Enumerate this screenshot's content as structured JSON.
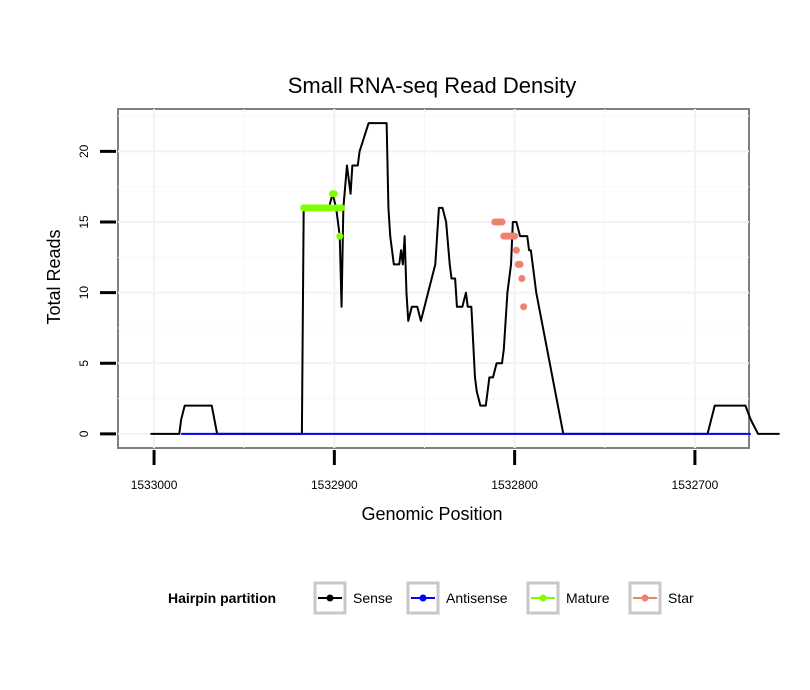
{
  "chart_data": {
    "type": "line",
    "title": "Small RNA-seq Read Density",
    "xlabel": "Genomic Position",
    "ylabel": "Total Reads",
    "x_reversed": true,
    "xlim": [
      1533020,
      1532670
    ],
    "ylim": [
      -1,
      23
    ],
    "x_ticks": [
      1533000,
      1532900,
      1532800,
      1532700
    ],
    "x_tick_labels": [
      "1533000",
      "1532900",
      "1532800",
      "1532700"
    ],
    "y_ticks": [
      0,
      5,
      10,
      15,
      20
    ],
    "y_tick_labels": [
      "0",
      "5",
      "10",
      "15",
      "20"
    ],
    "grid": true,
    "legend": {
      "title": "Hairpin partition",
      "position": "bottom",
      "entries": [
        {
          "label": "Sense",
          "color": "#000000"
        },
        {
          "label": "Antisense",
          "color": "#0000ff"
        },
        {
          "label": "Mature",
          "color": "#7fff00"
        },
        {
          "label": "Star",
          "color": "#f08070"
        }
      ]
    },
    "series": [
      {
        "name": "Sense",
        "color": "#000000",
        "x": [
          1533002,
          1532986,
          1532985,
          1532983,
          1532974,
          1532968,
          1532965,
          1532918,
          1532917,
          1532903,
          1532901,
          1532899,
          1532897,
          1532896,
          1532895,
          1532893,
          1532891,
          1532890,
          1532889,
          1532887,
          1532886,
          1532881,
          1532880,
          1532878,
          1532877,
          1532871,
          1532870,
          1532869,
          1532867,
          1532864,
          1532863,
          1532862,
          1532861,
          1532860,
          1532859,
          1532857,
          1532856,
          1532854,
          1532852,
          1532850,
          1532848,
          1532846,
          1532844,
          1532842,
          1532840,
          1532838,
          1532836,
          1532835,
          1532833,
          1532832,
          1532830,
          1532829,
          1532827,
          1532826,
          1532824,
          1532822,
          1532821,
          1532819,
          1532816,
          1532815,
          1532814,
          1532812,
          1532810,
          1532807,
          1532806,
          1532805,
          1532804,
          1532802,
          1532801,
          1532800,
          1532799,
          1532797,
          1532796,
          1532795,
          1532793,
          1532792,
          1532791,
          1532790,
          1532789,
          1532788,
          1532773,
          1532693,
          1532691,
          1532689,
          1532684,
          1532672,
          1532669,
          1532665,
          1532653
        ],
        "y": [
          0,
          0,
          1,
          2,
          2,
          2,
          0,
          0,
          16,
          16,
          17,
          16,
          14,
          9,
          16,
          19,
          17,
          19,
          19,
          19,
          20,
          22,
          22,
          22,
          22,
          22,
          16,
          14,
          12,
          12,
          13,
          12,
          14,
          10,
          8,
          9,
          9,
          9,
          8,
          9,
          10,
          11,
          12,
          16,
          16,
          15,
          12,
          11,
          11,
          9,
          9,
          9,
          10,
          9,
          9,
          4,
          3,
          2,
          2,
          3,
          4,
          4,
          5,
          5,
          6,
          8,
          10,
          12,
          15,
          15,
          15,
          14,
          14,
          14,
          14,
          13,
          13,
          12,
          11,
          10,
          0,
          0,
          1,
          2,
          2,
          2,
          1,
          0,
          0
        ]
      },
      {
        "name": "Antisense",
        "color": "#0000ff",
        "x": [
          1532985,
          1532965,
          1532917,
          1532773,
          1532691,
          1532669
        ],
        "y": [
          0,
          0,
          0,
          0,
          0,
          0
        ]
      },
      {
        "name": "Mature",
        "color": "#7fff00",
        "x": [
          1532917,
          1532916,
          1532915,
          1532914,
          1532913,
          1532912,
          1532911,
          1532910,
          1532909,
          1532908,
          1532907,
          1532906,
          1532905,
          1532904,
          1532903,
          1532902,
          1532901,
          1532900,
          1532899,
          1532898,
          1532897,
          1532896
        ],
        "y": [
          16,
          16,
          16,
          16,
          16,
          16,
          16,
          16,
          16,
          16,
          16,
          16,
          16,
          16,
          16,
          16,
          17,
          17,
          16,
          16,
          14,
          16
        ]
      },
      {
        "name": "Star",
        "color": "#f08070",
        "x": [
          1532811,
          1532810,
          1532809,
          1532808,
          1532807,
          1532806,
          1532805,
          1532804,
          1532803,
          1532802,
          1532801,
          1532800,
          1532799,
          1532798,
          1532797,
          1532796,
          1532795
        ],
        "y": [
          15,
          15,
          15,
          15,
          15,
          14,
          14,
          14,
          14,
          14,
          14,
          14,
          13,
          12,
          12,
          11,
          9
        ]
      }
    ]
  }
}
